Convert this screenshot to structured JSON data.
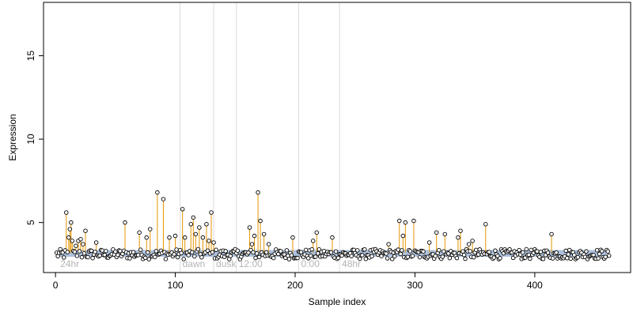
{
  "chart_data": {
    "type": "scatter",
    "xlabel": "Sample index",
    "ylabel": "Expression",
    "xlim": [
      -10,
      480
    ],
    "ylim": [
      2,
      18.2
    ],
    "x_ticks": [
      0,
      100,
      200,
      300,
      400
    ],
    "y_ticks": [
      5,
      10,
      15
    ],
    "baseline": 3.2,
    "time_markers": [
      {
        "label": "24hr",
        "x": 2,
        "line": false
      },
      {
        "label": "dawn",
        "x": 104,
        "line": true
      },
      {
        "label": "dusk",
        "x": 132,
        "line": true
      },
      {
        "label": "12:00",
        "x": 151,
        "line": true
      },
      {
        "label": "0:00",
        "x": 203,
        "line": true
      },
      {
        "label": "48hr",
        "x": 237,
        "line": true
      }
    ],
    "colors": {
      "points_outline": "#000000",
      "points_fill": "#ffffff",
      "spike": "#e69500",
      "baseline_band": "#9fb6d6",
      "vline": "#dcdcdc",
      "time_label": "#b4b4b4"
    },
    "peaks": [
      {
        "x": 9,
        "y": 5.6
      },
      {
        "x": 11,
        "y": 4.1
      },
      {
        "x": 12,
        "y": 4.6
      },
      {
        "x": 13,
        "y": 5.0
      },
      {
        "x": 14,
        "y": 3.9
      },
      {
        "x": 17,
        "y": 3.6
      },
      {
        "x": 19,
        "y": 3.9
      },
      {
        "x": 21,
        "y": 4.0
      },
      {
        "x": 23,
        "y": 3.7
      },
      {
        "x": 25,
        "y": 4.5
      },
      {
        "x": 34,
        "y": 3.8
      },
      {
        "x": 58,
        "y": 5.0
      },
      {
        "x": 70,
        "y": 4.4
      },
      {
        "x": 76,
        "y": 4.1
      },
      {
        "x": 79,
        "y": 4.6
      },
      {
        "x": 85,
        "y": 6.8
      },
      {
        "x": 90,
        "y": 6.4
      },
      {
        "x": 95,
        "y": 4.1
      },
      {
        "x": 100,
        "y": 4.2
      },
      {
        "x": 106,
        "y": 5.8
      },
      {
        "x": 108,
        "y": 4.1
      },
      {
        "x": 113,
        "y": 4.9
      },
      {
        "x": 115,
        "y": 5.3
      },
      {
        "x": 117,
        "y": 4.3
      },
      {
        "x": 120,
        "y": 4.7
      },
      {
        "x": 123,
        "y": 4.1
      },
      {
        "x": 126,
        "y": 4.9
      },
      {
        "x": 128,
        "y": 3.9
      },
      {
        "x": 130,
        "y": 5.6
      },
      {
        "x": 132,
        "y": 3.8
      },
      {
        "x": 162,
        "y": 4.7
      },
      {
        "x": 164,
        "y": 3.7
      },
      {
        "x": 166,
        "y": 4.2
      },
      {
        "x": 169,
        "y": 6.8
      },
      {
        "x": 171,
        "y": 5.1
      },
      {
        "x": 174,
        "y": 4.3
      },
      {
        "x": 178,
        "y": 3.7
      },
      {
        "x": 198,
        "y": 4.1
      },
      {
        "x": 215,
        "y": 3.9
      },
      {
        "x": 218,
        "y": 4.4
      },
      {
        "x": 231,
        "y": 4.1
      },
      {
        "x": 278,
        "y": 3.7
      },
      {
        "x": 287,
        "y": 5.1
      },
      {
        "x": 290,
        "y": 4.2
      },
      {
        "x": 292,
        "y": 5.0
      },
      {
        "x": 299,
        "y": 5.1
      },
      {
        "x": 312,
        "y": 3.8
      },
      {
        "x": 318,
        "y": 4.4
      },
      {
        "x": 325,
        "y": 4.3
      },
      {
        "x": 336,
        "y": 4.1
      },
      {
        "x": 338,
        "y": 4.5
      },
      {
        "x": 345,
        "y": 3.7
      },
      {
        "x": 348,
        "y": 3.9
      },
      {
        "x": 359,
        "y": 4.9
      },
      {
        "x": 414,
        "y": 4.3
      }
    ],
    "n_points": 462,
    "low_range": [
      2.8,
      3.4
    ]
  }
}
